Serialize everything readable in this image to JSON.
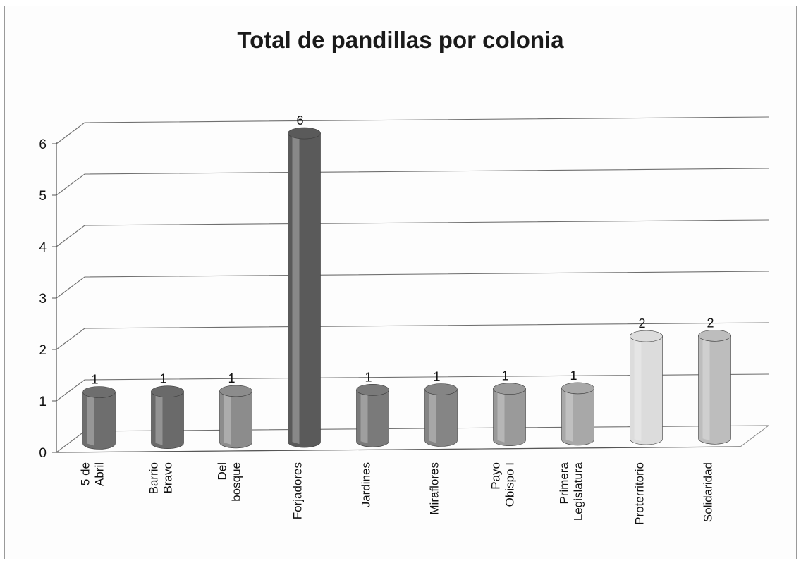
{
  "chart_data": {
    "type": "bar",
    "title": "Total de pandillas por colonia",
    "categories": [
      [
        "5 de",
        "Abril"
      ],
      [
        "Barrio",
        "Bravo"
      ],
      [
        "Del",
        "bosque"
      ],
      [
        "Forjadores"
      ],
      [
        "Jardines"
      ],
      [
        "Miraflores"
      ],
      [
        "Payo",
        "Obispo I"
      ],
      [
        "Primera",
        "Legislatura"
      ],
      [
        "Proterritorio"
      ],
      [
        "Solidaridad"
      ]
    ],
    "values": [
      1,
      1,
      1,
      6,
      1,
      1,
      1,
      1,
      2,
      2
    ],
    "data_labels": [
      "1",
      "1",
      "1",
      "6",
      "1",
      "1",
      "1",
      "1",
      "2",
      "2"
    ],
    "bar_colors": [
      "#6e6e6e",
      "#6a6a6a",
      "#8c8c8c",
      "#5a5a5a",
      "#7a7a7a",
      "#858585",
      "#9a9a9a",
      "#a8a8a8",
      "#dcdcdc",
      "#bdbdbd"
    ],
    "ylim": [
      0,
      6
    ],
    "yticks": [
      "0",
      "1",
      "2",
      "3",
      "4",
      "5",
      "6"
    ],
    "grid": true,
    "style": "3d-cylinder"
  }
}
